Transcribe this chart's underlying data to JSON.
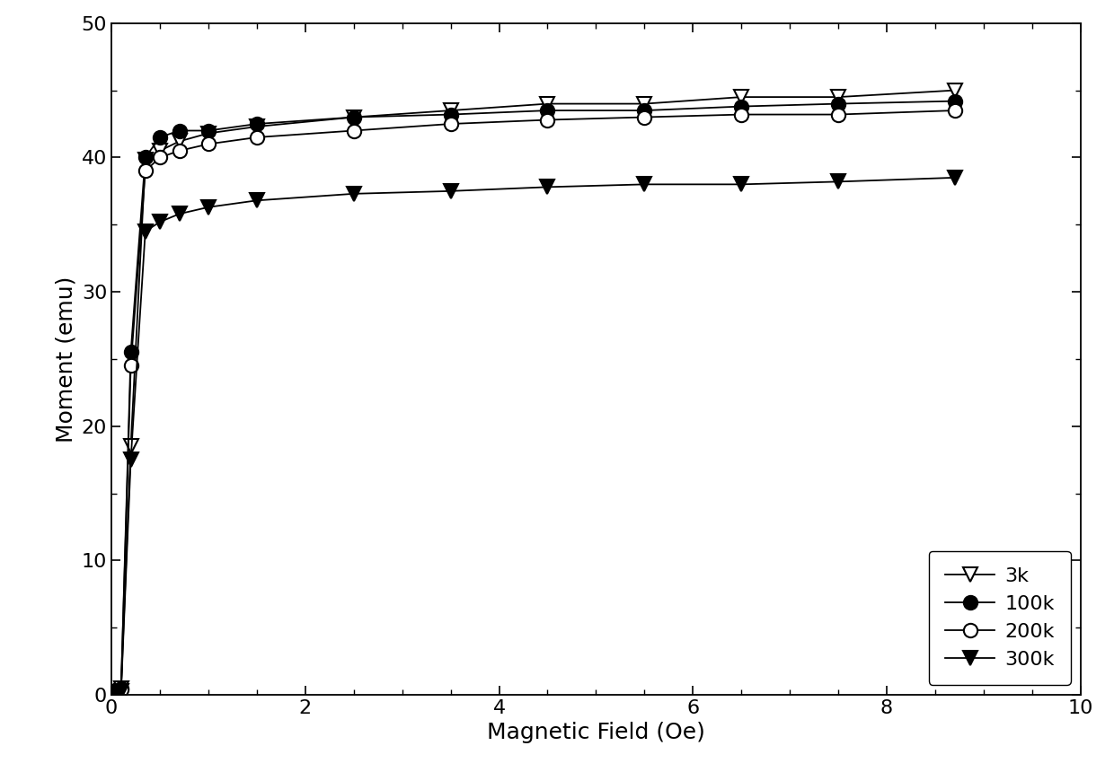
{
  "title": "",
  "xlabel": "Magnetic Field (Oe)",
  "ylabel": "Moment (emu)",
  "xlim": [
    0,
    10
  ],
  "ylim": [
    0,
    50
  ],
  "xticks": [
    0,
    2,
    4,
    6,
    8,
    10
  ],
  "yticks": [
    0,
    10,
    20,
    30,
    40,
    50
  ],
  "series": [
    {
      "label": "3k",
      "marker": "v",
      "filled": false,
      "color": "black",
      "x": [
        0.0,
        0.05,
        0.1,
        0.2,
        0.35,
        0.5,
        0.7,
        1.0,
        1.5,
        2.5,
        3.5,
        4.5,
        5.5,
        6.5,
        7.5,
        8.7
      ],
      "y": [
        0.0,
        0.2,
        0.5,
        18.5,
        39.8,
        40.5,
        41.2,
        41.8,
        42.3,
        43.0,
        43.5,
        44.0,
        44.0,
        44.5,
        44.5,
        45.0
      ]
    },
    {
      "label": "100k",
      "marker": "o",
      "filled": true,
      "color": "black",
      "x": [
        0.0,
        0.05,
        0.1,
        0.2,
        0.35,
        0.5,
        0.7,
        1.0,
        1.5,
        2.5,
        3.5,
        4.5,
        5.5,
        6.5,
        7.5,
        8.7
      ],
      "y": [
        0.0,
        0.2,
        0.5,
        25.5,
        40.0,
        41.5,
        42.0,
        42.0,
        42.5,
        43.0,
        43.2,
        43.5,
        43.5,
        43.8,
        44.0,
        44.2
      ]
    },
    {
      "label": "200k",
      "marker": "o",
      "filled": false,
      "color": "black",
      "x": [
        0.0,
        0.05,
        0.1,
        0.2,
        0.35,
        0.5,
        0.7,
        1.0,
        1.5,
        2.5,
        3.5,
        4.5,
        5.5,
        6.5,
        7.5,
        8.7
      ],
      "y": [
        0.0,
        0.2,
        0.4,
        24.5,
        39.0,
        40.0,
        40.5,
        41.0,
        41.5,
        42.0,
        42.5,
        42.8,
        43.0,
        43.2,
        43.2,
        43.5
      ]
    },
    {
      "label": "300k",
      "marker": "v",
      "filled": true,
      "color": "black",
      "x": [
        0.0,
        0.05,
        0.1,
        0.2,
        0.35,
        0.5,
        0.7,
        1.0,
        1.5,
        2.5,
        3.5,
        4.5,
        5.5,
        6.5,
        7.5,
        8.7
      ],
      "y": [
        0.0,
        0.1,
        0.3,
        17.5,
        34.5,
        35.2,
        35.8,
        36.3,
        36.8,
        37.3,
        37.5,
        37.8,
        38.0,
        38.0,
        38.2,
        38.5
      ]
    }
  ],
  "legend_loc": "lower right",
  "background_color": "#ffffff",
  "line_color": "black",
  "line_width": 1.3,
  "marker_size": 11,
  "fontsize_label": 18,
  "fontsize_tick": 16,
  "fontsize_legend": 16
}
